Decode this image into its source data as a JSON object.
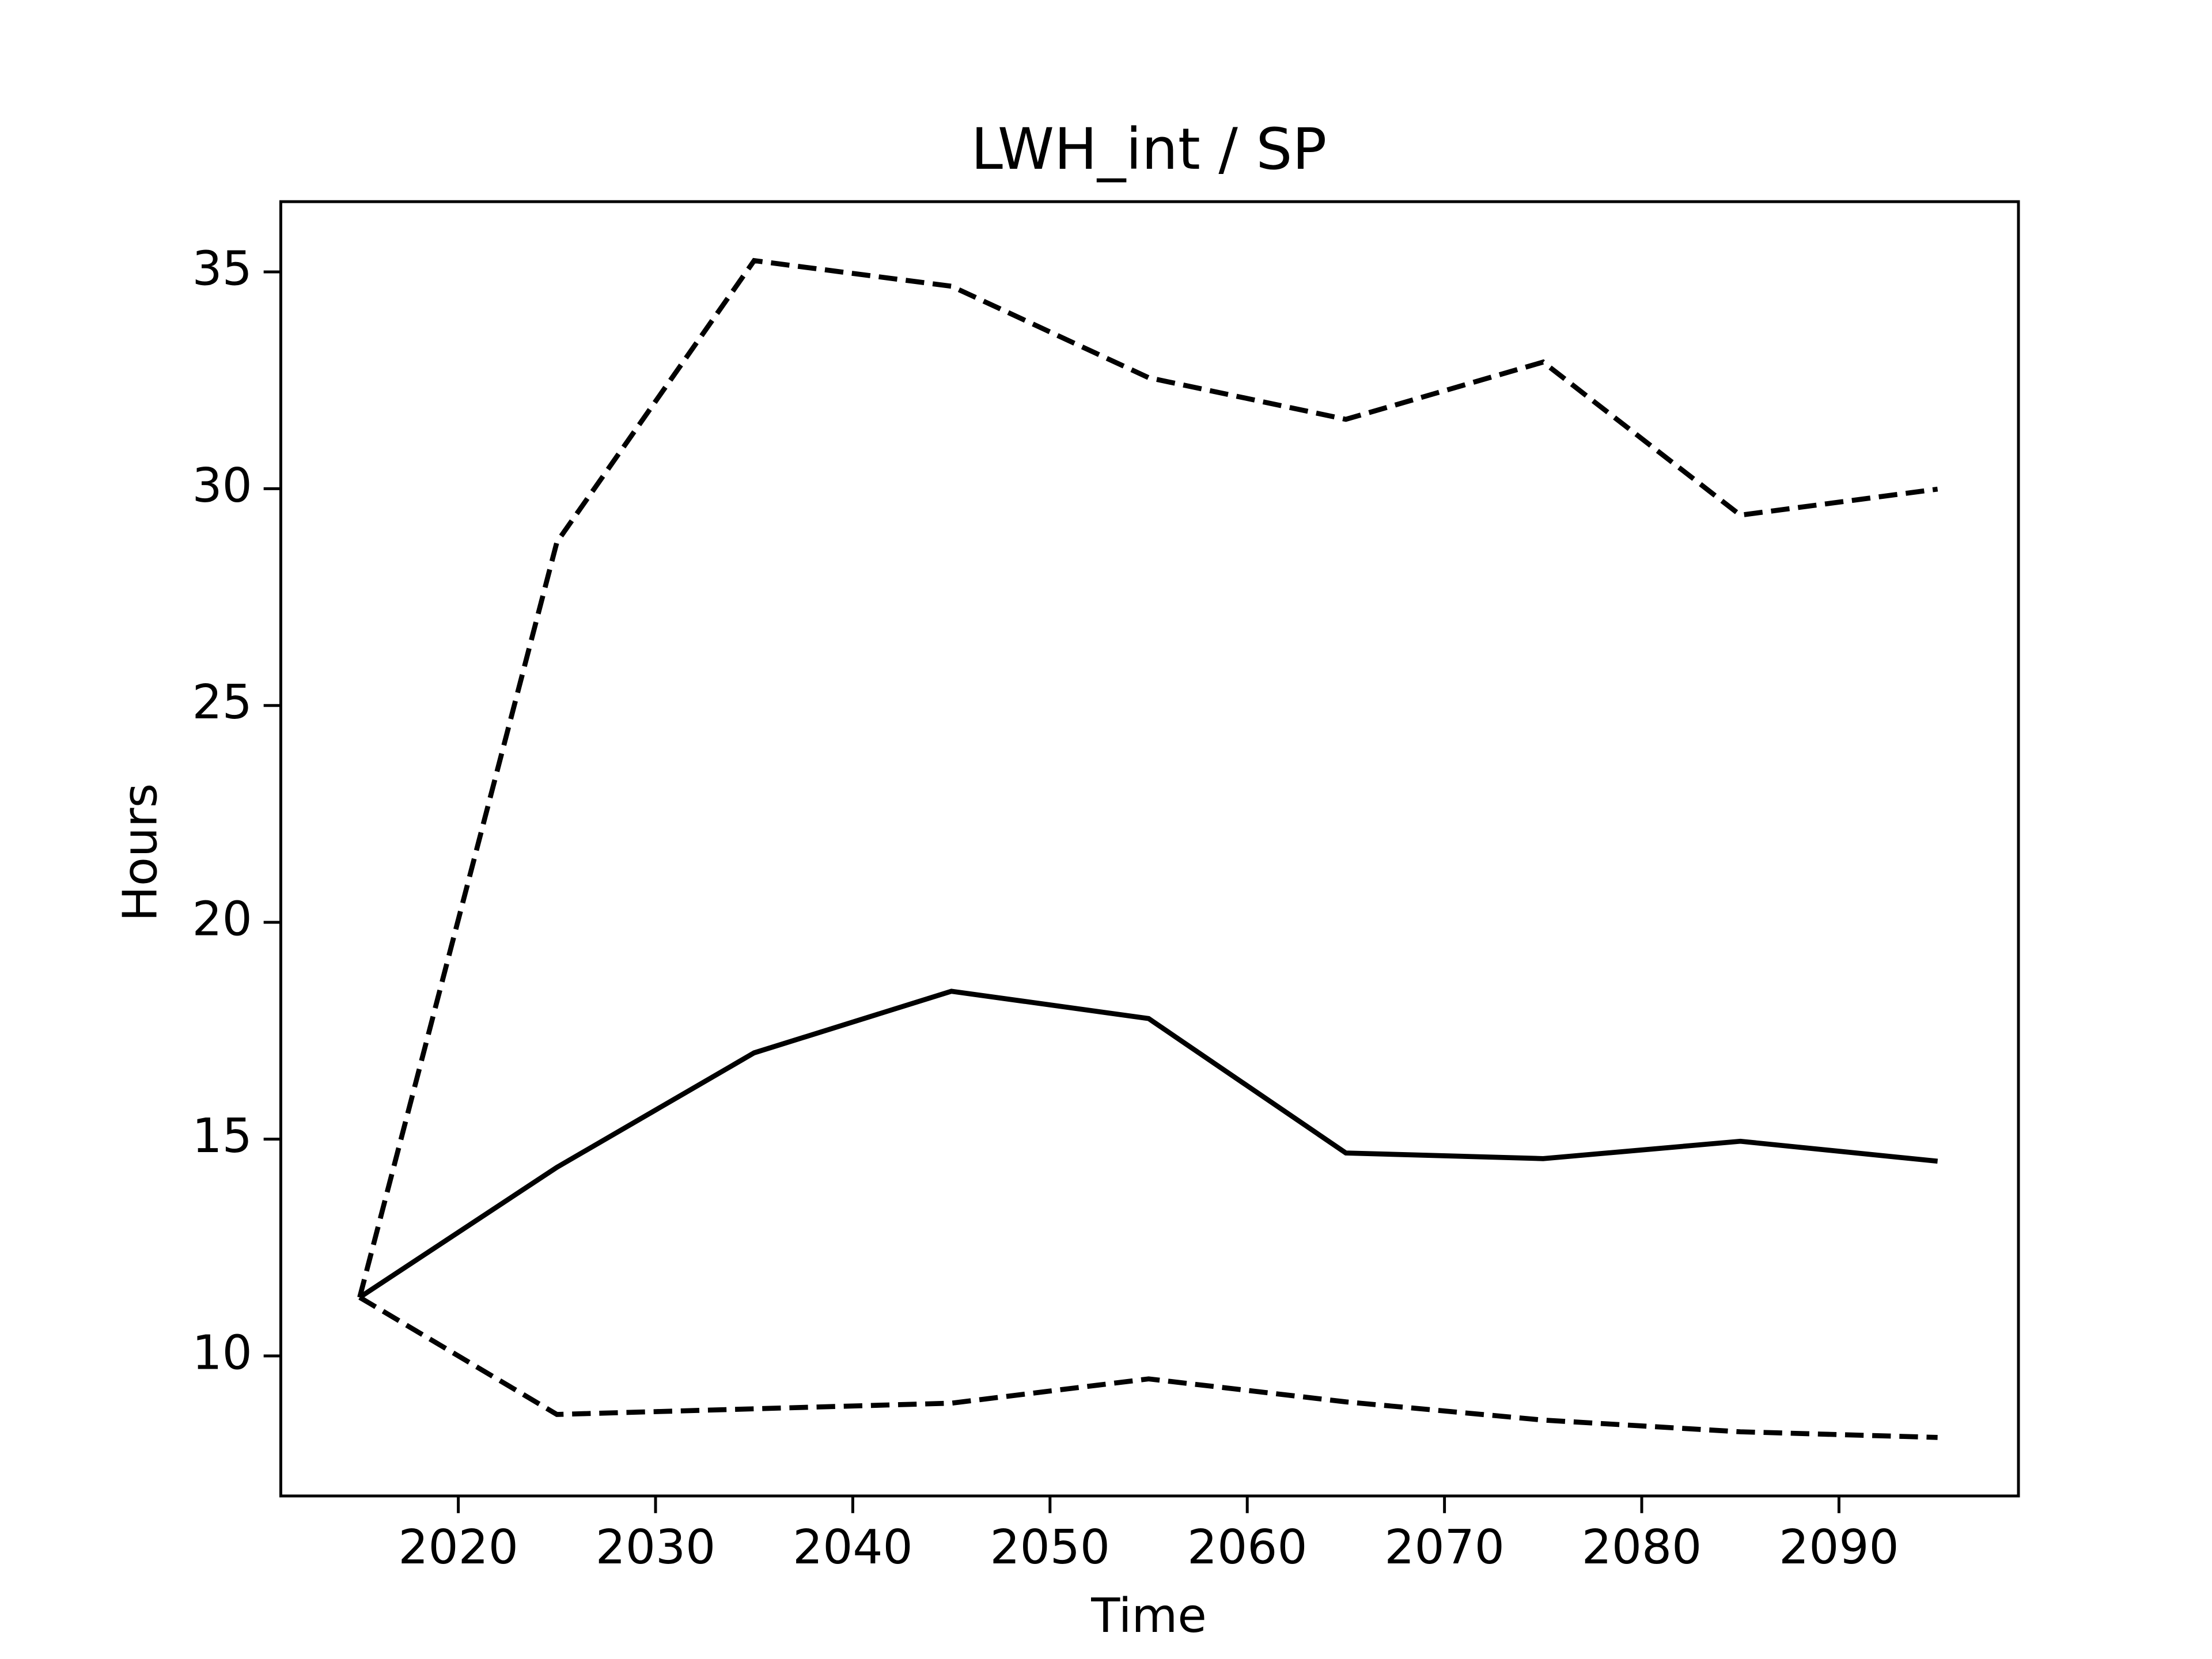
{
  "chart_data": {
    "type": "line",
    "title": "LWH_int / SP",
    "xlabel": "Time",
    "ylabel": "Hours",
    "x": [
      2015,
      2025,
      2035,
      2045,
      2055,
      2065,
      2075,
      2085,
      2095
    ],
    "series": [
      {
        "color": "#000000",
        "linestyle": "solid",
        "values": [
          11.35,
          14.35,
          16.99,
          18.41,
          17.78,
          14.68,
          14.55,
          14.95,
          14.49
        ]
      },
      {
        "color": "#000000",
        "linestyle": "dashed",
        "values": [
          11.35,
          28.77,
          35.26,
          34.67,
          32.56,
          31.6,
          32.92,
          29.39,
          29.99
        ]
      },
      {
        "color": "#000000",
        "linestyle": "dashed",
        "values": [
          11.35,
          8.65,
          8.78,
          8.91,
          9.47,
          8.94,
          8.52,
          8.25,
          8.12
        ]
      }
    ],
    "xlim": [
      2011,
      2099.1
    ],
    "ylim": [
      6.77,
      36.62
    ],
    "xticks": [
      2020,
      2030,
      2040,
      2050,
      2060,
      2070,
      2080,
      2090
    ],
    "yticks": [
      10,
      15,
      20,
      25,
      30,
      35
    ],
    "grid": false
  }
}
